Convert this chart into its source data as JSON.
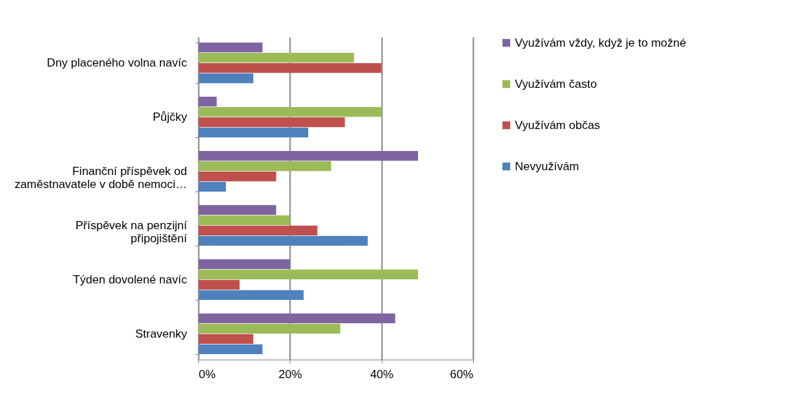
{
  "chart_data": {
    "type": "bar",
    "orientation": "horizontal",
    "categories": [
      "Dny placeného volna navíc",
      "Půjčky",
      "Finanční příspěvek od zaměstnavatele v době nemoci…",
      "Příspěvek na penzijní připojištění",
      "Týden dovolené navíc",
      "Stravenky"
    ],
    "series": [
      {
        "name": "Využívám vždy, když je to možné",
        "color": "#8064a2",
        "values": [
          14,
          4,
          48,
          17,
          20,
          43
        ]
      },
      {
        "name": "Využívám často",
        "color": "#9bbb59",
        "values": [
          34,
          40,
          29,
          20,
          48,
          31
        ]
      },
      {
        "name": "Využívám občas",
        "color": "#c0504d",
        "values": [
          40,
          32,
          17,
          26,
          9,
          12
        ]
      },
      {
        "name": "Nevyužívám",
        "color": "#4f81bd",
        "values": [
          12,
          24,
          6,
          37,
          23,
          14
        ]
      }
    ],
    "xlim": [
      0,
      60
    ],
    "xticks": [
      {
        "value": 0,
        "label": "0%"
      },
      {
        "value": 20,
        "label": "20%"
      },
      {
        "value": 40,
        "label": "40%"
      },
      {
        "value": 60,
        "label": "60%"
      }
    ],
    "grid": "x",
    "legend": "top right"
  }
}
